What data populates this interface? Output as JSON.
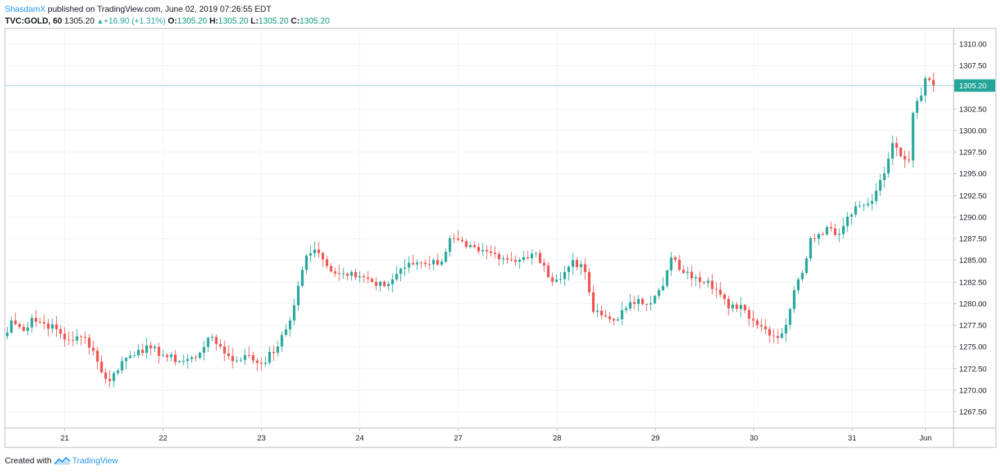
{
  "header": {
    "user": "ShasdamX",
    "published_text": " published on TradingView.com, June 02, 2019 07:26:55 EDT",
    "symbol": "TVC:GOLD, 60",
    "last": "1305.20",
    "change": "+16.90 (+1.31%)",
    "o_label": "O:",
    "o": "1305.20",
    "h_label": "H:",
    "h": "1305.20",
    "l_label": "L:",
    "l": "1305.20",
    "c_label": "C:",
    "c": "1305.20"
  },
  "footer": {
    "created_with": "Created with",
    "brand": "TradingView"
  },
  "colors": {
    "up": "#26a69a",
    "down": "#ef5350",
    "grid": "#f0f3fa",
    "axis": "#787b86",
    "price_line": "#26a69a"
  },
  "chart_data": {
    "type": "candlestick",
    "last_price_label": "1305.20",
    "last_price": 1305.2,
    "ylim": [
      1265.0,
      1312.0
    ],
    "y_ticks": [
      1310,
      1307.5,
      1305,
      1302.5,
      1300,
      1297.5,
      1295,
      1292.5,
      1290,
      1287.5,
      1285,
      1282.5,
      1280,
      1277.5,
      1275,
      1272.5,
      1270,
      1267.5
    ],
    "y_tick_labels": [
      "1310.00",
      "1307.50",
      "1305.00",
      "1302.50",
      "1300.00",
      "1297.50",
      "1295.00",
      "1292.50",
      "1290.00",
      "1287.50",
      "1285.00",
      "1282.50",
      "1280.00",
      "1277.50",
      "1275.00",
      "1272.50",
      "1270.00",
      "1267.50"
    ],
    "x_ticks": [
      {
        "label": "21",
        "index": 14
      },
      {
        "label": "22",
        "index": 38
      },
      {
        "label": "23",
        "index": 62
      },
      {
        "label": "24",
        "index": 86
      },
      {
        "label": "27",
        "index": 110
      },
      {
        "label": "28",
        "index": 134
      },
      {
        "label": "29",
        "index": 158
      },
      {
        "label": "30",
        "index": 182
      },
      {
        "label": "31",
        "index": 206
      },
      {
        "label": "Jun",
        "index": 224
      }
    ],
    "grid": true,
    "keys": [
      {
        "i": 0,
        "c": 1276.6
      },
      {
        "i": 1,
        "c": 1278.0
      },
      {
        "i": 4,
        "c": 1276.8
      },
      {
        "i": 6,
        "c": 1278.3
      },
      {
        "i": 12,
        "c": 1277.0
      },
      {
        "i": 14,
        "c": 1275.8
      },
      {
        "i": 19,
        "c": 1276.0
      },
      {
        "i": 21,
        "c": 1274.5
      },
      {
        "i": 23,
        "c": 1272.0
      },
      {
        "i": 25,
        "c": 1271.0
      },
      {
        "i": 28,
        "c": 1273.3
      },
      {
        "i": 32,
        "c": 1274.6
      },
      {
        "i": 35,
        "c": 1274.8
      },
      {
        "i": 38,
        "c": 1274.0
      },
      {
        "i": 42,
        "c": 1273.3
      },
      {
        "i": 46,
        "c": 1273.7
      },
      {
        "i": 49,
        "c": 1276.0
      },
      {
        "i": 52,
        "c": 1275.0
      },
      {
        "i": 55,
        "c": 1273.3
      },
      {
        "i": 58,
        "c": 1274.0
      },
      {
        "i": 62,
        "c": 1273.0
      },
      {
        "i": 66,
        "c": 1275.0
      },
      {
        "i": 69,
        "c": 1278.0
      },
      {
        "i": 71,
        "c": 1282.0
      },
      {
        "i": 73,
        "c": 1285.5
      },
      {
        "i": 75,
        "c": 1286.2
      },
      {
        "i": 78,
        "c": 1284.3
      },
      {
        "i": 81,
        "c": 1283.4
      },
      {
        "i": 84,
        "c": 1283.6
      },
      {
        "i": 87,
        "c": 1283.0
      },
      {
        "i": 90,
        "c": 1282.0
      },
      {
        "i": 93,
        "c": 1282.2
      },
      {
        "i": 96,
        "c": 1284.0
      },
      {
        "i": 100,
        "c": 1284.7
      },
      {
        "i": 106,
        "c": 1284.8
      },
      {
        "i": 108,
        "c": 1287.5
      },
      {
        "i": 112,
        "c": 1286.5
      },
      {
        "i": 115,
        "c": 1286.0
      },
      {
        "i": 119,
        "c": 1285.7
      },
      {
        "i": 123,
        "c": 1285.0
      },
      {
        "i": 127,
        "c": 1285.2
      },
      {
        "i": 129,
        "c": 1285.8
      },
      {
        "i": 132,
        "c": 1283.0
      },
      {
        "i": 135,
        "c": 1282.8
      },
      {
        "i": 138,
        "c": 1285.0
      },
      {
        "i": 141,
        "c": 1283.6
      },
      {
        "i": 143,
        "c": 1279.0
      },
      {
        "i": 145,
        "c": 1278.6
      },
      {
        "i": 148,
        "c": 1278.0
      },
      {
        "i": 151,
        "c": 1279.4
      },
      {
        "i": 154,
        "c": 1280.5
      },
      {
        "i": 157,
        "c": 1280.0
      },
      {
        "i": 160,
        "c": 1282.0
      },
      {
        "i": 162,
        "c": 1285.3
      },
      {
        "i": 165,
        "c": 1283.5
      },
      {
        "i": 168,
        "c": 1283.0
      },
      {
        "i": 171,
        "c": 1282.6
      },
      {
        "i": 174,
        "c": 1281.0
      },
      {
        "i": 176,
        "c": 1279.4
      },
      {
        "i": 179,
        "c": 1279.8
      },
      {
        "i": 182,
        "c": 1278.0
      },
      {
        "i": 185,
        "c": 1277.0
      },
      {
        "i": 188,
        "c": 1276.0
      },
      {
        "i": 190,
        "c": 1277.5
      },
      {
        "i": 192,
        "c": 1281.5
      },
      {
        "i": 194,
        "c": 1283.5
      },
      {
        "i": 196,
        "c": 1287.5
      },
      {
        "i": 198,
        "c": 1288.0
      },
      {
        "i": 200,
        "c": 1288.8
      },
      {
        "i": 203,
        "c": 1288.0
      },
      {
        "i": 205,
        "c": 1290.0
      },
      {
        "i": 207,
        "c": 1291.2
      },
      {
        "i": 210,
        "c": 1291.5
      },
      {
        "i": 212,
        "c": 1293.0
      },
      {
        "i": 214,
        "c": 1295.0
      },
      {
        "i": 216,
        "c": 1298.5
      },
      {
        "i": 218,
        "c": 1297.0
      },
      {
        "i": 220,
        "c": 1296.5
      },
      {
        "i": 221,
        "c": 1302.0
      },
      {
        "i": 223,
        "c": 1304.0
      },
      {
        "i": 224,
        "c": 1306.0
      },
      {
        "i": 226,
        "c": 1305.2
      }
    ],
    "n_bars": 227
  }
}
